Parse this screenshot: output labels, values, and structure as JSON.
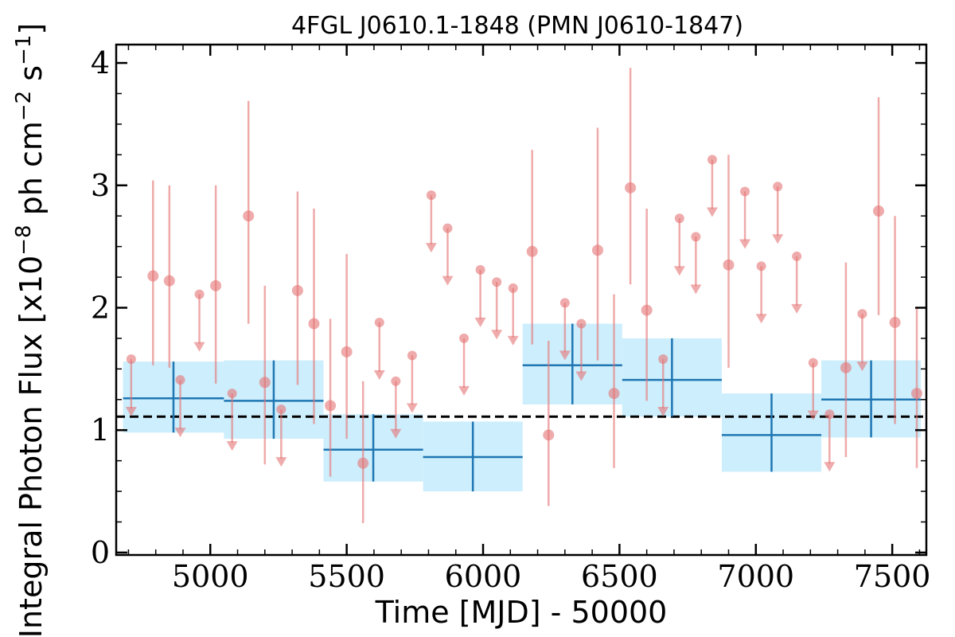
{
  "chart_data": {
    "type": "scatter",
    "title": "4FGL J0610.1-1848 (PMN J0610-1847)",
    "xlabel": "Time [MJD] - 50000",
    "ylabel": "Integral Photon Flux [x10",
    "ylabel_exp1": "−8",
    "ylabel_mid": " ph cm",
    "ylabel_exp2": "−2",
    "ylabel_mid2": " s",
    "ylabel_exp3": "−1",
    "ylabel_end": "]",
    "xlim": [
      4655,
      7625
    ],
    "ylim": [
      -0.02,
      4.15
    ],
    "xticks": [
      5000,
      5500,
      6000,
      6500,
      7000,
      7500
    ],
    "xtick_labels": [
      "5000",
      "5500",
      "6000",
      "6500",
      "7000",
      "7500"
    ],
    "yticks": [
      0,
      1,
      2,
      3,
      4
    ],
    "ytick_labels": [
      "0",
      "1",
      "2",
      "3",
      "4"
    ],
    "mean_flux": 1.11,
    "colors": {
      "points": "#e57373",
      "bins": "#1f77b4",
      "bin_band": "#cdeefc",
      "mean_line": "#000000"
    },
    "series": [
      {
        "kind": "detections",
        "points": [
          {
            "x": 4790,
            "y": 2.26,
            "lo": 1.53,
            "hi": 3.04
          },
          {
            "x": 4850,
            "y": 2.22,
            "lo": 1.51,
            "hi": 3.0
          },
          {
            "x": 5020,
            "y": 2.18,
            "lo": 1.38,
            "hi": 3.0
          },
          {
            "x": 5140,
            "y": 2.75,
            "lo": 1.87,
            "hi": 3.69
          },
          {
            "x": 5200,
            "y": 1.39,
            "lo": 0.72,
            "hi": 2.18
          },
          {
            "x": 5320,
            "y": 2.14,
            "lo": 1.37,
            "hi": 2.95
          },
          {
            "x": 5380,
            "y": 1.87,
            "lo": 1.05,
            "hi": 2.81
          },
          {
            "x": 5440,
            "y": 1.2,
            "lo": 0.62,
            "hi": 1.91
          },
          {
            "x": 5500,
            "y": 1.64,
            "lo": 0.93,
            "hi": 2.44
          },
          {
            "x": 5560,
            "y": 0.73,
            "lo": 0.24,
            "hi": 1.4
          },
          {
            "x": 6180,
            "y": 2.46,
            "lo": 1.7,
            "hi": 3.29
          },
          {
            "x": 6240,
            "y": 0.96,
            "lo": 0.38,
            "hi": 1.73
          },
          {
            "x": 6420,
            "y": 2.47,
            "lo": 1.57,
            "hi": 3.47
          },
          {
            "x": 6480,
            "y": 1.3,
            "lo": 0.69,
            "hi": 2.11
          },
          {
            "x": 6540,
            "y": 2.98,
            "lo": 2.19,
            "hi": 3.96
          },
          {
            "x": 6600,
            "y": 1.98,
            "lo": 1.24,
            "hi": 2.81
          },
          {
            "x": 6900,
            "y": 2.35,
            "lo": 1.51,
            "hi": 3.25
          },
          {
            "x": 7330,
            "y": 1.51,
            "lo": 0.78,
            "hi": 2.37
          },
          {
            "x": 7450,
            "y": 2.79,
            "lo": 1.94,
            "hi": 3.72
          },
          {
            "x": 7510,
            "y": 1.88,
            "lo": 1.05,
            "hi": 2.75
          },
          {
            "x": 7590,
            "y": 1.3,
            "lo": 0.69,
            "hi": 2.0
          }
        ]
      },
      {
        "kind": "upper_limits",
        "points": [
          {
            "x": 4710,
            "y": 1.58
          },
          {
            "x": 4890,
            "y": 1.41
          },
          {
            "x": 4960,
            "y": 2.11
          },
          {
            "x": 5080,
            "y": 1.3
          },
          {
            "x": 5260,
            "y": 1.17
          },
          {
            "x": 5620,
            "y": 1.88
          },
          {
            "x": 5680,
            "y": 1.4
          },
          {
            "x": 5740,
            "y": 1.61
          },
          {
            "x": 5810,
            "y": 2.92
          },
          {
            "x": 5870,
            "y": 2.65
          },
          {
            "x": 5930,
            "y": 1.75
          },
          {
            "x": 5990,
            "y": 2.31
          },
          {
            "x": 6050,
            "y": 2.21
          },
          {
            "x": 6110,
            "y": 2.16
          },
          {
            "x": 6300,
            "y": 2.04
          },
          {
            "x": 6360,
            "y": 1.87
          },
          {
            "x": 6660,
            "y": 1.58
          },
          {
            "x": 6720,
            "y": 2.73
          },
          {
            "x": 6780,
            "y": 2.58
          },
          {
            "x": 6840,
            "y": 3.21
          },
          {
            "x": 6960,
            "y": 2.95
          },
          {
            "x": 7020,
            "y": 2.34
          },
          {
            "x": 7080,
            "y": 2.99
          },
          {
            "x": 7150,
            "y": 2.42
          },
          {
            "x": 7210,
            "y": 1.55
          },
          {
            "x": 7270,
            "y": 1.13
          },
          {
            "x": 7390,
            "y": 1.95
          }
        ]
      },
      {
        "kind": "binned",
        "bins": [
          {
            "x0": 4680,
            "x1": 5050,
            "y": 1.26,
            "lo": 0.98,
            "hi": 1.56
          },
          {
            "x0": 5050,
            "x1": 5415,
            "y": 1.24,
            "lo": 0.93,
            "hi": 1.57
          },
          {
            "x0": 5415,
            "x1": 5780,
            "y": 0.84,
            "lo": 0.58,
            "hi": 1.13
          },
          {
            "x0": 5780,
            "x1": 6145,
            "y": 0.78,
            "lo": 0.5,
            "hi": 1.07
          },
          {
            "x0": 6145,
            "x1": 6510,
            "y": 1.53,
            "lo": 1.21,
            "hi": 1.87
          },
          {
            "x0": 6510,
            "x1": 6875,
            "y": 1.41,
            "lo": 1.11,
            "hi": 1.75
          },
          {
            "x0": 6875,
            "x1": 7240,
            "y": 0.96,
            "lo": 0.66,
            "hi": 1.3
          },
          {
            "x0": 7240,
            "x1": 7605,
            "y": 1.25,
            "lo": 0.94,
            "hi": 1.57
          }
        ]
      }
    ]
  }
}
